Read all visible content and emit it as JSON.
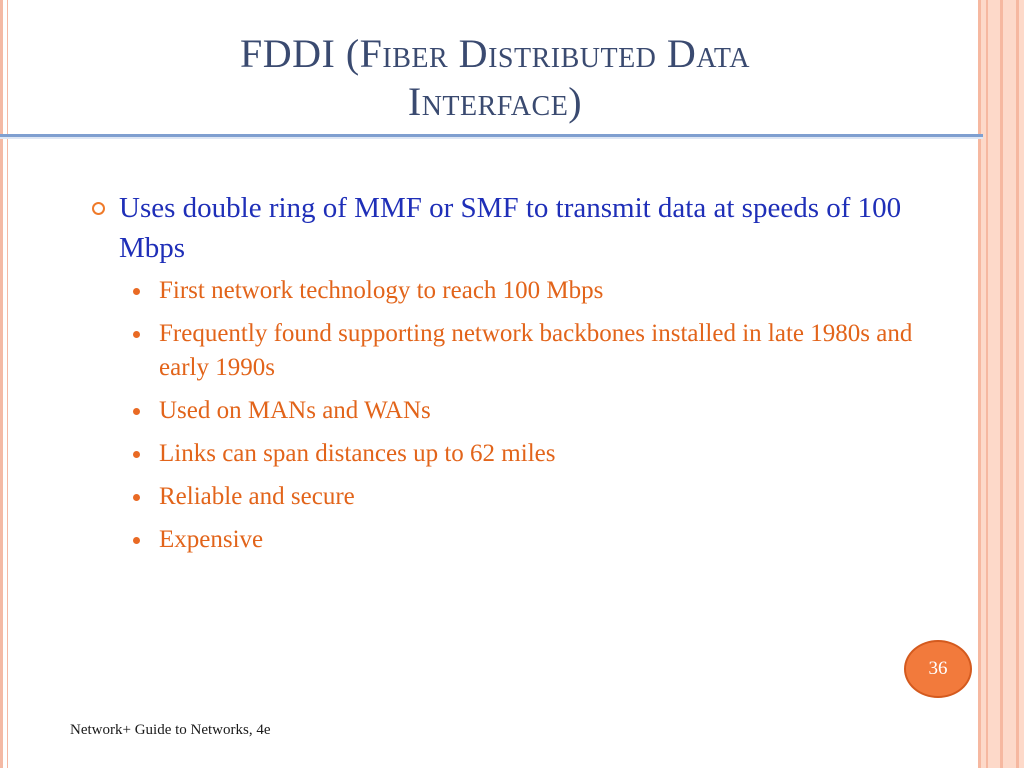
{
  "slide": {
    "title_line1": "FDDI (Fiber Distributed Data",
    "title_line2": "Interface)",
    "main_bullet": "Uses double ring of MMF or SMF to transmit data at speeds of 100 Mbps",
    "sub_bullets": [
      "First network technology to reach 100 Mbps",
      "Frequently found supporting network backbones installed in late 1980s and early 1990s",
      "Used on MANs and WANs",
      "Links can span distances up to 62 miles",
      "Reliable and secure",
      "Expensive"
    ],
    "page_number": "36",
    "footer": "Network+ Guide to Networks, 4e"
  },
  "colors": {
    "title": "#3a4a70",
    "main_bullet_text": "#1f2fb8",
    "sub_bullet_text": "#e2641a",
    "accent_orange": "#f27a3c",
    "rule_blue": "#7f9fd0",
    "side_stripe": "#f6b8a0"
  },
  "icons": {
    "main_bullet": "ring-bullet-icon",
    "sub_bullet": "dot-bullet-icon"
  }
}
